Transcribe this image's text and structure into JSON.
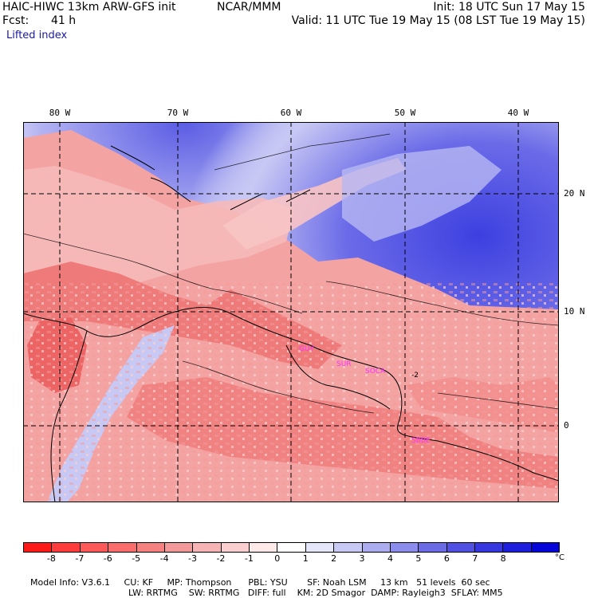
{
  "header": {
    "model_title": "HAIC-HIWC 13km ARW-GFS init",
    "org": "NCAR/MMM",
    "init": "Init: 18 UTC Sun 17 May 15",
    "fcst_label": "Fcst:",
    "fcst_value": "41 h",
    "valid": "Valid: 11 UTC Tue 19 May 15 (08 LST Tue 19 May 15)",
    "field_name": "Lifted index"
  },
  "map": {
    "lon_labels": [
      "80 W",
      "70 W",
      "60 W",
      "50 W",
      "40 W"
    ],
    "lat_labels": [
      "20 N",
      "10 N",
      "0"
    ],
    "station_labels": [
      "GUY",
      "SUR",
      "SOCA",
      "SBBE"
    ],
    "station_color": "#ff33ff",
    "contour_label": "-2",
    "colors": {
      "unstable_deep": "#e8403f",
      "unstable": "#f28787",
      "slightly_unstable": "#fbd6d6",
      "neutral": "#ffffff",
      "stable": "#c8c8f4",
      "stable_deep": "#6b6be8",
      "very_stable": "#3d40e0"
    }
  },
  "colorbar": {
    "ticks": [
      "-8",
      "-7",
      "-6",
      "-5",
      "-4",
      "-3",
      "-2",
      "-1",
      "0",
      "1",
      "2",
      "3",
      "4",
      "5",
      "6",
      "7",
      "8"
    ],
    "unit": "°C",
    "colors": [
      "#ff1a1a",
      "#ff3b3b",
      "#ff5858",
      "#f96d6d",
      "#f58181",
      "#f49999",
      "#f7b4b4",
      "#fbcfcf",
      "#ffe9e9",
      "#ffffff",
      "#e6e6fb",
      "#c9c9f6",
      "#acacf1",
      "#8c8cec",
      "#6b6be6",
      "#5050e3",
      "#3737e0",
      "#1e1edd",
      "#0505d9"
    ]
  },
  "model_info": {
    "line1": [
      {
        "label": "Model Info: V3.6.1"
      },
      {
        "label": "CU: KF"
      },
      {
        "label": "MP: Thompson"
      },
      {
        "label": "PBL: YSU"
      },
      {
        "label": "SF: Noah LSM"
      },
      {
        "label": "13 km"
      },
      {
        "label": "51 levels"
      },
      {
        "label": "60 sec"
      }
    ],
    "line2": [
      {
        "label": "LW: RRTMG"
      },
      {
        "label": "SW: RRTMG"
      },
      {
        "label": "DIFF: full"
      },
      {
        "label": "KM: 2D Smagor"
      },
      {
        "label": "DAMP: Rayleigh3"
      },
      {
        "label": "SFLAY: MM5"
      }
    ]
  }
}
